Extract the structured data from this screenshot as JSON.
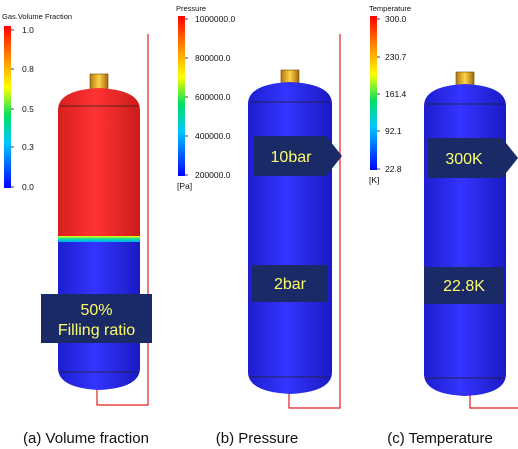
{
  "colors": {
    "liquid_blue": "#2b2bf0",
    "gas_red": "#f02a2a",
    "box_navy": "#1a2a66",
    "box_text": "#ffff66",
    "pipe_red": "#e02020"
  },
  "panels": [
    {
      "caption": "(a) Volume fraction",
      "colorbar": {
        "title": "Gas.Volume Fraction",
        "ticks": [
          "1.0",
          "0.8",
          "0.5",
          "0.3",
          "0.0"
        ],
        "unit": ""
      },
      "fill_ratio": 0.5,
      "label_box": {
        "line1": "50%",
        "line2": "Filling ratio"
      }
    },
    {
      "caption": "(b) Pressure",
      "colorbar": {
        "title": "Pressure",
        "ticks": [
          "1000000.0",
          "800000.0",
          "600000.0",
          "400000.0",
          "200000.0"
        ],
        "unit": "[Pa]"
      },
      "top_label": "10bar",
      "bottom_label": "2bar"
    },
    {
      "caption": "(c) Temperature",
      "colorbar": {
        "title": "Temperature",
        "ticks": [
          "300.0",
          "230.7",
          "161.4",
          "92.1",
          "22.8"
        ],
        "unit": "[K]"
      },
      "top_label": "300K",
      "bottom_label": "22.8K"
    }
  ]
}
